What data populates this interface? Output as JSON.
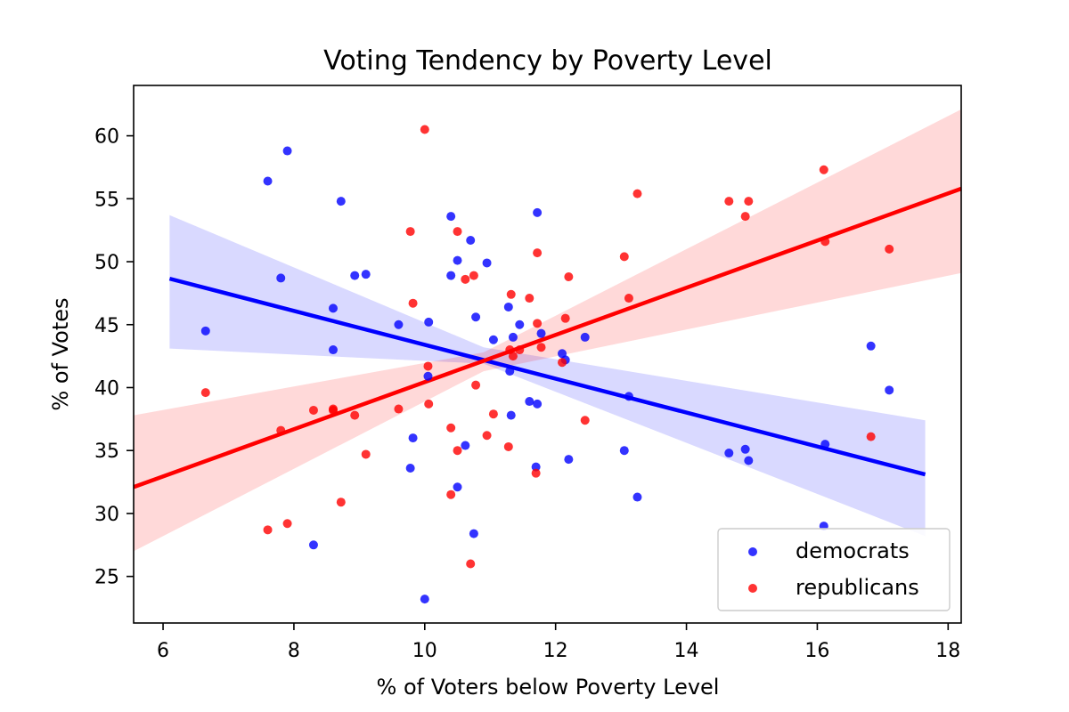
{
  "chart_data": {
    "type": "scatter",
    "title": "Voting Tendency by Poverty Level",
    "xlabel": "% of Voters below Poverty Level",
    "ylabel": "% of Votes",
    "xlim": [
      5.55,
      18.2
    ],
    "ylim": [
      21.3,
      64.0
    ],
    "xticks": [
      6,
      8,
      10,
      12,
      14,
      16,
      18
    ],
    "yticks": [
      25,
      30,
      35,
      40,
      45,
      50,
      55,
      60
    ],
    "grid": false,
    "legend_position": "lower-right",
    "series": [
      {
        "name": "democrats",
        "color": "#0000ff",
        "points": [
          [
            6.65,
            44.5
          ],
          [
            7.6,
            56.4
          ],
          [
            7.8,
            48.7
          ],
          [
            7.9,
            58.8
          ],
          [
            8.3,
            27.5
          ],
          [
            8.6,
            46.3
          ],
          [
            8.6,
            43.0
          ],
          [
            8.72,
            54.8
          ],
          [
            8.93,
            48.9
          ],
          [
            9.1,
            49.0
          ],
          [
            9.6,
            45.0
          ],
          [
            9.78,
            33.6
          ],
          [
            9.82,
            36.0
          ],
          [
            10.0,
            23.2
          ],
          [
            10.05,
            40.9
          ],
          [
            10.06,
            45.2
          ],
          [
            10.4,
            53.6
          ],
          [
            10.4,
            48.9
          ],
          [
            10.5,
            50.1
          ],
          [
            10.5,
            32.1
          ],
          [
            10.62,
            35.4
          ],
          [
            10.7,
            51.7
          ],
          [
            10.75,
            28.4
          ],
          [
            10.78,
            45.6
          ],
          [
            10.95,
            49.9
          ],
          [
            11.05,
            43.8
          ],
          [
            11.28,
            46.4
          ],
          [
            11.3,
            41.3
          ],
          [
            11.32,
            37.8
          ],
          [
            11.35,
            44.0
          ],
          [
            11.45,
            45.0
          ],
          [
            11.6,
            38.9
          ],
          [
            11.7,
            33.7
          ],
          [
            11.72,
            38.7
          ],
          [
            11.72,
            53.9
          ],
          [
            11.78,
            44.3
          ],
          [
            12.1,
            42.7
          ],
          [
            12.15,
            42.2
          ],
          [
            12.2,
            34.3
          ],
          [
            12.45,
            44.0
          ],
          [
            13.05,
            35.0
          ],
          [
            13.12,
            39.3
          ],
          [
            13.25,
            31.3
          ],
          [
            14.65,
            34.8
          ],
          [
            14.9,
            35.1
          ],
          [
            14.95,
            34.2
          ],
          [
            16.1,
            29.0
          ],
          [
            16.12,
            35.5
          ],
          [
            16.82,
            43.3
          ],
          [
            17.1,
            39.8
          ]
        ],
        "fit": {
          "x": [
            6.1,
            17.65
          ],
          "y": [
            48.65,
            33.1
          ]
        },
        "band": {
          "x": [
            6.1,
            10.9,
            17.65
          ],
          "upper": [
            53.7,
            43.2,
            37.4
          ],
          "lower": [
            43.1,
            41.9,
            28.2
          ]
        }
      },
      {
        "name": "republicans",
        "color": "#ff0000",
        "points": [
          [
            6.65,
            39.6
          ],
          [
            7.6,
            28.7
          ],
          [
            7.8,
            36.6
          ],
          [
            7.9,
            29.2
          ],
          [
            8.3,
            38.2
          ],
          [
            8.6,
            38.3
          ],
          [
            8.6,
            38.2
          ],
          [
            8.72,
            30.9
          ],
          [
            8.93,
            37.8
          ],
          [
            9.1,
            34.7
          ],
          [
            9.6,
            38.3
          ],
          [
            9.78,
            52.4
          ],
          [
            9.82,
            46.7
          ],
          [
            10.0,
            60.5
          ],
          [
            10.05,
            41.7
          ],
          [
            10.06,
            38.7
          ],
          [
            10.4,
            31.5
          ],
          [
            10.4,
            36.8
          ],
          [
            10.5,
            52.4
          ],
          [
            10.5,
            35.0
          ],
          [
            10.62,
            48.6
          ],
          [
            10.7,
            26.0
          ],
          [
            10.75,
            48.9
          ],
          [
            10.78,
            40.2
          ],
          [
            10.95,
            36.2
          ],
          [
            11.05,
            37.9
          ],
          [
            11.28,
            35.3
          ],
          [
            11.3,
            43.0
          ],
          [
            11.32,
            47.4
          ],
          [
            11.35,
            42.5
          ],
          [
            11.45,
            43.0
          ],
          [
            11.6,
            47.1
          ],
          [
            11.7,
            33.2
          ],
          [
            11.72,
            45.1
          ],
          [
            11.72,
            50.7
          ],
          [
            11.78,
            43.2
          ],
          [
            12.1,
            42.0
          ],
          [
            12.15,
            45.5
          ],
          [
            12.2,
            48.8
          ],
          [
            12.45,
            37.4
          ],
          [
            13.05,
            50.4
          ],
          [
            13.12,
            47.1
          ],
          [
            13.25,
            55.4
          ],
          [
            14.65,
            54.8
          ],
          [
            14.9,
            53.6
          ],
          [
            14.95,
            54.8
          ],
          [
            16.1,
            57.3
          ],
          [
            16.12,
            51.6
          ],
          [
            16.82,
            36.1
          ],
          [
            17.1,
            51.0
          ]
        ],
        "fit": {
          "x": [
            5.55,
            18.2
          ],
          "y": [
            32.1,
            55.8
          ]
        },
        "band": {
          "x": [
            5.55,
            10.9,
            18.2
          ],
          "upper": [
            37.8,
            42.8,
            62.1
          ],
          "lower": [
            27.0,
            41.3,
            49.1
          ]
        }
      }
    ]
  }
}
